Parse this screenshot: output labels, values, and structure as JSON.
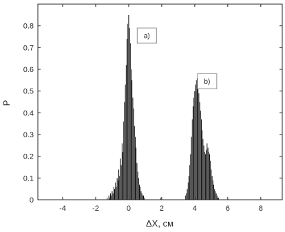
{
  "chart_data": {
    "type": "bar",
    "xlabel": "ΔX, см",
    "ylabel": "P",
    "xlim": [
      -5.5,
      9.3
    ],
    "ylim": [
      0,
      0.9
    ],
    "xticks": [
      -4,
      -2,
      0,
      2,
      4,
      6,
      8
    ],
    "yticks": [
      0,
      0.1,
      0.2,
      0.3,
      0.4,
      0.5,
      0.6,
      0.7,
      0.8
    ],
    "grid": false,
    "bar_color": "#000000",
    "bin_width": 0.05,
    "series": [
      {
        "x": [
          -1.35,
          -1.3,
          -1.25,
          -1.2,
          -1.15,
          -1.1,
          -1.05,
          -1.0,
          -0.95,
          -0.9,
          -0.85,
          -0.8,
          -0.75,
          -0.7,
          -0.65,
          -0.6,
          -0.55,
          -0.5,
          -0.45,
          -0.4,
          -0.35,
          -0.3,
          -0.25,
          -0.2,
          -0.15,
          -0.1,
          -0.05,
          0.0,
          0.05,
          0.1,
          0.15,
          0.2,
          0.25,
          0.3,
          0.35,
          0.4,
          0.45,
          0.5,
          0.55,
          0.6,
          0.65,
          0.7,
          0.75,
          0.8,
          0.85,
          0.9,
          0.95,
          1.0
        ],
        "values": [
          0.0,
          0.01,
          0.0,
          0.02,
          0.01,
          0.03,
          0.02,
          0.04,
          0.03,
          0.06,
          0.05,
          0.08,
          0.06,
          0.1,
          0.09,
          0.14,
          0.11,
          0.19,
          0.16,
          0.26,
          0.22,
          0.36,
          0.45,
          0.53,
          0.62,
          0.74,
          0.81,
          0.85,
          0.79,
          0.72,
          0.6,
          0.55,
          0.47,
          0.42,
          0.34,
          0.29,
          0.24,
          0.17,
          0.13,
          0.1,
          0.07,
          0.06,
          0.04,
          0.03,
          0.02,
          0.02,
          0.01,
          0.0
        ]
      },
      {
        "x": [
          1.95,
          2.05
        ],
        "values": [
          0.01,
          0.0
        ]
      },
      {
        "x": [
          3.4,
          3.45,
          3.5,
          3.55,
          3.6,
          3.65,
          3.7,
          3.75,
          3.8,
          3.85,
          3.9,
          3.95,
          4.0,
          4.05,
          4.1,
          4.15,
          4.2,
          4.25,
          4.3,
          4.35,
          4.4,
          4.45,
          4.5,
          4.55,
          4.6,
          4.65,
          4.7,
          4.75,
          4.8,
          4.85,
          4.9,
          4.95,
          5.0,
          5.05,
          5.1,
          5.15,
          5.2,
          5.25,
          5.3,
          5.35,
          5.4,
          5.45,
          5.5
        ],
        "values": [
          0.0,
          0.02,
          0.03,
          0.05,
          0.08,
          0.11,
          0.16,
          0.21,
          0.29,
          0.37,
          0.43,
          0.47,
          0.5,
          0.53,
          0.55,
          0.56,
          0.52,
          0.49,
          0.45,
          0.41,
          0.37,
          0.32,
          0.28,
          0.25,
          0.22,
          0.21,
          0.23,
          0.26,
          0.24,
          0.22,
          0.21,
          0.18,
          0.14,
          0.11,
          0.09,
          0.07,
          0.05,
          0.04,
          0.03,
          0.02,
          0.01,
          0.01,
          0.0
        ]
      }
    ],
    "annotations": [
      {
        "text": "a)",
        "x": 1.1,
        "y": 0.755
      },
      {
        "text": "b)",
        "x": 4.75,
        "y": 0.545
      }
    ]
  }
}
